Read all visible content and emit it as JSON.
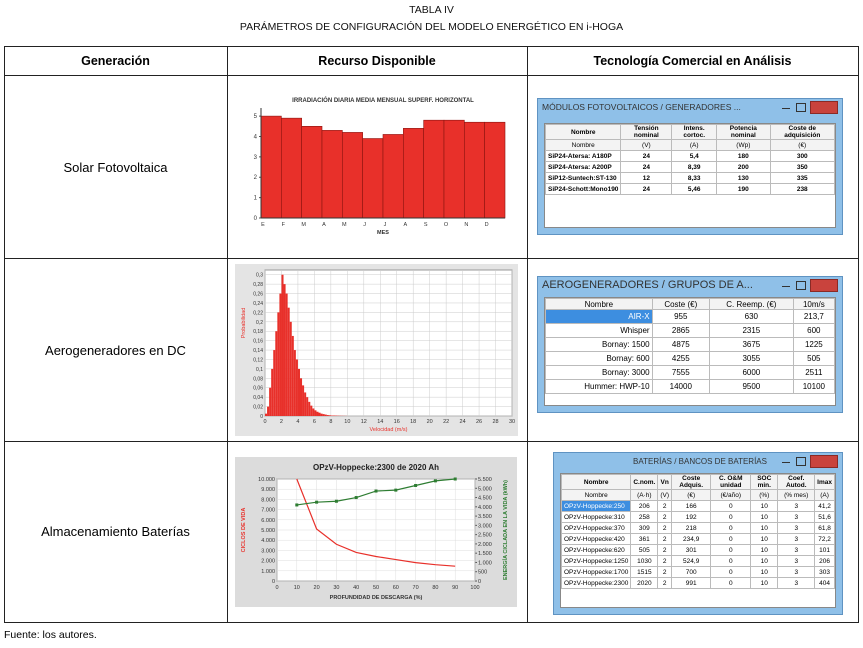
{
  "caption": {
    "number": "TABLA IV",
    "title": "PARÁMETROS DE CONFIGURACIÓN DEL MODELO ENERGÉTICO EN i-HOGA"
  },
  "table": {
    "headers": [
      "Generación",
      "Recurso Disponible",
      "Tecnología Comercial en Análisis"
    ],
    "rows": [
      {
        "label": "Solar Fotovoltaica",
        "resource": {
          "type": "bar",
          "title": "IRRADIACIÓN DIARIA MEDIA MENSUAL SUPERF. HORIZONTAL",
          "xlabel": "MES",
          "categories": [
            "E",
            "F",
            "M",
            "A",
            "M",
            "J",
            "J",
            "A",
            "S",
            "O",
            "N",
            "D"
          ],
          "values": [
            5.0,
            4.9,
            4.5,
            4.3,
            4.2,
            3.9,
            4.1,
            4.4,
            4.8,
            4.8,
            4.7,
            4.7
          ],
          "color": "#e8302a",
          "ylim": [
            0,
            5.3
          ],
          "yticks": [
            0,
            1,
            2,
            3,
            4,
            5
          ]
        },
        "technology": {
          "title": "MÓDULOS FOTOVOLTAICOS / GENERADORES ...",
          "headers": [
            "Nombre",
            "Tensión nominal",
            "Intens. cortoc.",
            "Potencia nominal",
            "Coste de adquisición"
          ],
          "units": [
            "Nombre",
            "(V)",
            "(A)",
            "(Wp)",
            "(€)"
          ],
          "rows": [
            [
              "SiP24-Atersa: A180P",
              "24",
              "5,4",
              "180",
              "300"
            ],
            [
              "SiP24-Atersa: A200P",
              "24",
              "8,39",
              "200",
              "350"
            ],
            [
              "SiP12-Suntech:ST-130",
              "12",
              "8,33",
              "130",
              "335"
            ],
            [
              "SiP24-Schott:Mono190",
              "24",
              "5,46",
              "190",
              "238"
            ]
          ]
        }
      },
      {
        "label": "Aerogeneradores en DC",
        "resource": {
          "type": "histogram",
          "ylabel": "Probabilidad",
          "xlabel": "Velocidad (m/s)",
          "color": "#e8302a",
          "bins": [
            0,
            0.25,
            0.5,
            0.75,
            1,
            1.25,
            1.5,
            1.75,
            2,
            2.25,
            2.5,
            2.75,
            3,
            3.25,
            3.5,
            3.75,
            4,
            4.25,
            4.5,
            4.75,
            5,
            5.25,
            5.5,
            5.75,
            6,
            6.25,
            6.5,
            6.75,
            7,
            7.25,
            7.5,
            7.75,
            8,
            8.25,
            8.5,
            8.75,
            9,
            9.25,
            9.5,
            9.75,
            10
          ],
          "values": [
            0.005,
            0.02,
            0.06,
            0.1,
            0.14,
            0.18,
            0.22,
            0.26,
            0.3,
            0.28,
            0.26,
            0.23,
            0.2,
            0.17,
            0.14,
            0.12,
            0.1,
            0.08,
            0.065,
            0.05,
            0.04,
            0.03,
            0.022,
            0.016,
            0.012,
            0.009,
            0.007,
            0.005,
            0.004,
            0.003,
            0.002,
            0.0015,
            0.001,
            0.001,
            0.0008,
            0.0006,
            0.0005,
            0.0004,
            0.0003,
            0.0002
          ],
          "xlim": [
            0,
            30
          ],
          "xticks": [
            0,
            2,
            4,
            6,
            8,
            10,
            12,
            14,
            16,
            18,
            20,
            22,
            24,
            26,
            28,
            30
          ],
          "ylim": [
            0,
            0.31
          ],
          "yticks": [
            0,
            {
              "value": 0.02,
              "label": "0,02"
            },
            {
              "value": 0.04,
              "label": "0,04"
            },
            {
              "value": 0.06,
              "label": "0,06"
            },
            {
              "value": 0.08,
              "label": "0,08"
            },
            {
              "value": 0.1,
              "label": "0,1"
            },
            {
              "value": 0.12,
              "label": "0,12"
            },
            {
              "value": 0.14,
              "label": "0,14"
            },
            {
              "value": 0.16,
              "label": "0,16"
            },
            {
              "value": 0.18,
              "label": "0,18"
            },
            {
              "value": 0.2,
              "label": "0,2"
            },
            {
              "value": 0.22,
              "label": "0,22"
            },
            {
              "value": 0.24,
              "label": "0,24"
            },
            {
              "value": 0.26,
              "label": "0,26"
            },
            {
              "value": 0.28,
              "label": "0,28"
            },
            {
              "value": 0.3,
              "label": "0,3"
            }
          ]
        },
        "technology": {
          "title": "AEROGENERADORES / GRUPOS DE A...",
          "headers": [
            "Nombre",
            "Coste (€)",
            "C. Reemp. (€)",
            "10m/s"
          ],
          "rows": [
            [
              "AIR-X",
              "955",
              "630",
              "213,7"
            ],
            [
              "Whisper",
              "2865",
              "2315",
              "600"
            ],
            [
              "Bornay: 1500",
              "4875",
              "3675",
              "1225"
            ],
            [
              "Bornay: 600",
              "4255",
              "3055",
              "505"
            ],
            [
              "Bornay: 3000",
              "7555",
              "6000",
              "2511"
            ],
            [
              "Hummer: HWP-10",
              "14000",
              "9500",
              "10100"
            ]
          ]
        }
      },
      {
        "label": "Almacenamiento Baterías",
        "resource": {
          "type": "line",
          "title": "OPzV-Hoppecke:2300 de 2020 Ah",
          "xlabel": "PROFUNDIDAD DE DESCARGA (%)",
          "ylabel": "CICLOS DE VIDA",
          "y2label": "ENERGÍA CICLADA EN LA VIDA (kWh)",
          "x": [
            10,
            20,
            30,
            40,
            50,
            60,
            70,
            80,
            90
          ],
          "series": [
            {
              "color": "#e8302a",
              "values": [
                10000,
                5100,
                3600,
                2800,
                2400,
                2100,
                1800,
                1600,
                1450
              ]
            },
            {
              "color": "#2e7d32",
              "axis": "y2",
              "values": [
                4100,
                4250,
                4300,
                4500,
                4850,
                4900,
                5150,
                5400,
                5500
              ]
            }
          ],
          "xlim": [
            0,
            100
          ],
          "xticks": [
            0,
            10,
            20,
            30,
            40,
            50,
            60,
            70,
            80,
            90,
            100
          ],
          "ylim": [
            0,
            10000
          ],
          "yticks": [
            0,
            {
              "value": 1000,
              "label": "1.000"
            },
            {
              "value": 2000,
              "label": "2.000"
            },
            {
              "value": 3000,
              "label": "3.000"
            },
            {
              "value": 4000,
              "label": "4.000"
            },
            {
              "value": 5000,
              "label": "5.000"
            },
            {
              "value": 6000,
              "label": "6.000"
            },
            {
              "value": 7000,
              "label": "7.000"
            },
            {
              "value": 8000,
              "label": "8.000"
            },
            {
              "value": 9000,
              "label": "9.000"
            },
            {
              "value": 10000,
              "label": "10.000"
            }
          ],
          "y2lim": [
            0,
            5500
          ],
          "y2ticks": [
            0,
            500,
            {
              "value": 1000,
              "label": "1.000"
            },
            {
              "value": 1500,
              "label": "1.500"
            },
            {
              "value": 2000,
              "label": "2.000"
            },
            {
              "value": 2500,
              "label": "2.500"
            },
            {
              "value": 3000,
              "label": "3.000"
            },
            {
              "value": 3500,
              "label": "3.500"
            },
            {
              "value": 4000,
              "label": "4.000"
            },
            {
              "value": 4500,
              "label": "4.500"
            },
            {
              "value": 5000,
              "label": "5.000"
            },
            {
              "value": 5500,
              "label": "5.500"
            }
          ]
        },
        "technology": {
          "title": "BATERÍAS / BANCOS DE BATERÍAS",
          "headers": [
            "Nombre",
            "C.nom.",
            "Vn",
            "Coste Adquis.",
            "C. O&M unidad",
            "SOC min.",
            "Coef. Autod.",
            "Imax"
          ],
          "units": [
            "Nombre",
            "(A·h)",
            "(V)",
            "(€)",
            "(€/año)",
            "(%)",
            "(% mes)",
            "(A)"
          ],
          "rows": [
            [
              "OPzV-Hoppecke:250",
              "206",
              "2",
              "166",
              "0",
              "10",
              "3",
              "41,2"
            ],
            [
              "OPzV-Hoppecke:310",
              "258",
              "2",
              "192",
              "0",
              "10",
              "3",
              "51,6"
            ],
            [
              "OPzV-Hoppecke:370",
              "309",
              "2",
              "218",
              "0",
              "10",
              "3",
              "61,8"
            ],
            [
              "OPzV-Hoppecke:420",
              "361",
              "2",
              "234,9",
              "0",
              "10",
              "3",
              "72,2"
            ],
            [
              "OPzV-Hoppecke:620",
              "505",
              "2",
              "301",
              "0",
              "10",
              "3",
              "101"
            ],
            [
              "OPzV-Hoppecke:1250",
              "1030",
              "2",
              "524,9",
              "0",
              "10",
              "3",
              "206"
            ],
            [
              "OPzV-Hoppecke:1700",
              "1515",
              "2",
              "700",
              "0",
              "10",
              "3",
              "303"
            ],
            [
              "OPzV-Hoppecke:2300",
              "2020",
              "2",
              "991",
              "0",
              "10",
              "3",
              "404"
            ]
          ]
        }
      }
    ]
  },
  "source": "Fuente: los autores."
}
